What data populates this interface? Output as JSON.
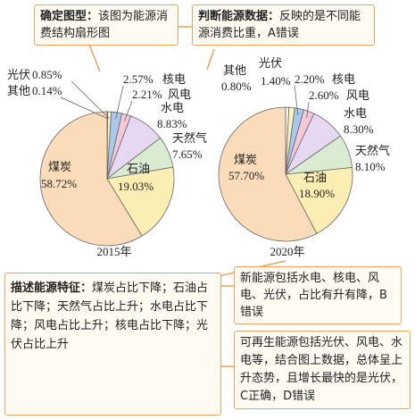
{
  "chart_data": [
    {
      "type": "pie",
      "title": "2015年",
      "categories": [
        "其他",
        "光伏",
        "核电",
        "风电",
        "水电",
        "天然气",
        "石油",
        "煤炭"
      ],
      "values": [
        0.14,
        0.85,
        2.57,
        2.21,
        8.83,
        7.65,
        19.03,
        58.72
      ],
      "value_labels": [
        "0.14%",
        "0.85%",
        "2.57%",
        "2.21%",
        "8.83%",
        "7.65%",
        "19.03%",
        "58.72%"
      ],
      "colors": [
        "#fdfbf2",
        "#fbf3c0",
        "#a9c9ea",
        "#f3c9da",
        "#e6d8f0",
        "#d9ecd2",
        "#fbeeb3",
        "#fbdcba"
      ]
    },
    {
      "type": "pie",
      "title": "2020年",
      "categories": [
        "其他",
        "光伏",
        "核电",
        "风电",
        "水电",
        "天然气",
        "石油",
        "煤炭"
      ],
      "values": [
        0.8,
        1.4,
        2.2,
        2.6,
        8.3,
        8.1,
        18.9,
        57.7
      ],
      "value_labels": [
        "0.80%",
        "1.40%",
        "2.20%",
        "2.60%",
        "8.30%",
        "8.10%",
        "18.90%",
        "57.70%"
      ],
      "colors": [
        "#fdfbf2",
        "#fbf3c0",
        "#a9c9ea",
        "#f3c9da",
        "#e6d8f0",
        "#d9ecd2",
        "#fbeeb3",
        "#fbdcba"
      ]
    }
  ],
  "notes": [
    {
      "heading": "确定图型：",
      "text": "该图为能源消费结构扇形图"
    },
    {
      "heading": "判断能源数据：",
      "text": "反映的是不同能源消费比重，A错误"
    },
    {
      "heading": "描述能源特征：",
      "text": "煤炭占比下降；石油占比下降；天然气占比上升；水电占比下降；风电占比上升；核电占比下降；光伏占比上升"
    },
    {
      "text": "新能源包括水电、核电、风电、光伏，占比有升有降，B错误"
    },
    {
      "text": "可再生能源包括光伏、风电、水电等，结合图上数据，总体呈上升态势，且增长最快的是光伏，C正确，D错误"
    }
  ]
}
